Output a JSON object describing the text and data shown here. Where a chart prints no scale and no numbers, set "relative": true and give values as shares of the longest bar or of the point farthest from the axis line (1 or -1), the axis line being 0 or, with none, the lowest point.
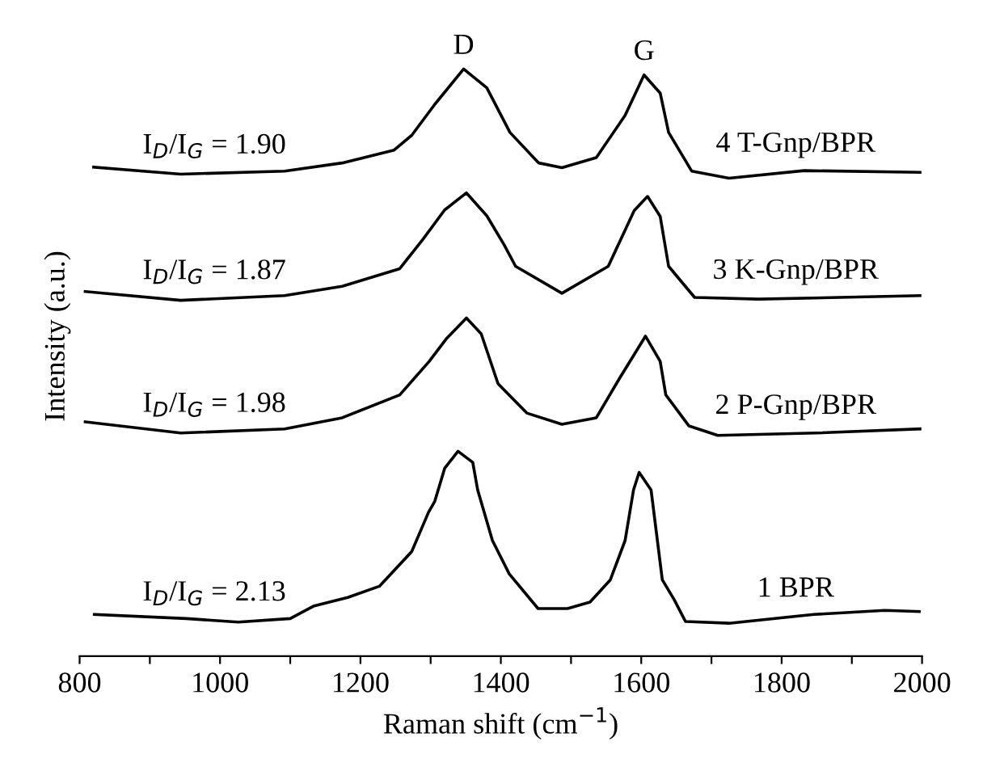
{
  "chart_data": {
    "type": "line",
    "relative": true,
    "xlabel": "Raman shift (cm$^{−1}$)",
    "ylabel": "Intensity (a.u.)",
    "xlim": [
      800,
      2000
    ],
    "xticks": [
      800,
      {
        "value": 900,
        "label": null
      },
      1000,
      {
        "value": 1100,
        "label": null
      },
      1200,
      {
        "value": 1300,
        "label": null
      },
      1400,
      {
        "value": 1500,
        "label": null
      },
      1600,
      {
        "value": 1700,
        "label": null
      },
      1800,
      {
        "value": 1900,
        "label": null
      },
      2000
    ],
    "grid": false,
    "legend": false,
    "marker": "none",
    "line_style": "solid",
    "tick_labels": "x",
    "series": [
      {
        "name": "1 BPR",
        "color": "#000000",
        "x": [
          821,
          952,
          1026,
          1100,
          1133,
          1182,
          1227,
          1273,
          1297,
          1306,
          1320,
          1339,
          1360,
          1367,
          1388,
          1412,
          1453,
          1495,
          1527,
          1556,
          1577,
          1589,
          1597,
          1614,
          1630,
          1647,
          1663,
          1725,
          1846,
          1947,
          1996
        ],
        "values": [
          0.071,
          0.064,
          0.058,
          0.064,
          0.085,
          0.1,
          0.119,
          0.178,
          0.245,
          0.264,
          0.32,
          0.349,
          0.33,
          0.283,
          0.197,
          0.14,
          0.081,
          0.081,
          0.092,
          0.13,
          0.197,
          0.283,
          0.313,
          0.283,
          0.13,
          0.096,
          0.059,
          0.056,
          0.071,
          0.078,
          0.076
        ]
      },
      {
        "name": "2 P-Gnp/BPR",
        "color": "#000000",
        "x": [
          808,
          944,
          1092,
          1174,
          1256,
          1298,
          1322,
          1351,
          1372,
          1396,
          1437,
          1487,
          1536,
          1569,
          1606,
          1627,
          1635,
          1668,
          1709,
          1849,
          1997
        ],
        "values": [
          0.399,
          0.38,
          0.387,
          0.406,
          0.445,
          0.502,
          0.54,
          0.576,
          0.549,
          0.464,
          0.414,
          0.395,
          0.406,
          0.473,
          0.545,
          0.502,
          0.445,
          0.392,
          0.376,
          0.38,
          0.387
        ]
      },
      {
        "name": "3 K-Gnp/BPR",
        "color": "#000000",
        "x": [
          808,
          944,
          1092,
          1174,
          1256,
          1289,
          1320,
          1351,
          1380,
          1405,
          1421,
          1487,
          1553,
          1590,
          1609,
          1627,
          1639,
          1676,
          1767,
          1997
        ],
        "values": [
          0.621,
          0.606,
          0.614,
          0.63,
          0.66,
          0.71,
          0.76,
          0.789,
          0.75,
          0.7,
          0.664,
          0.618,
          0.664,
          0.759,
          0.783,
          0.749,
          0.664,
          0.611,
          0.608,
          0.614
        ]
      },
      {
        "name": "4 T-Gnp/BPR",
        "color": "#000000",
        "x": [
          820,
          944,
          1092,
          1174,
          1248,
          1273,
          1306,
          1347,
          1380,
          1413,
          1454,
          1487,
          1536,
          1577,
          1604,
          1627,
          1639,
          1672,
          1725,
          1832,
          1997
        ],
        "values": [
          0.833,
          0.821,
          0.826,
          0.84,
          0.862,
          0.887,
          0.94,
          1,
          0.968,
          0.892,
          0.84,
          0.832,
          0.849,
          0.921,
          0.99,
          0.959,
          0.892,
          0.826,
          0.814,
          0.827,
          0.824
        ]
      }
    ],
    "annotations": [
      "D",
      "G",
      "I$_{D}$/I$_{G}$ = 1.90",
      "I$_{D}$/I$_{G}$ = 1.87",
      "I$_{D}$/I$_{G}$ = 1.98",
      "I$_{D}$/I$_{G}$ = 2.13"
    ]
  }
}
